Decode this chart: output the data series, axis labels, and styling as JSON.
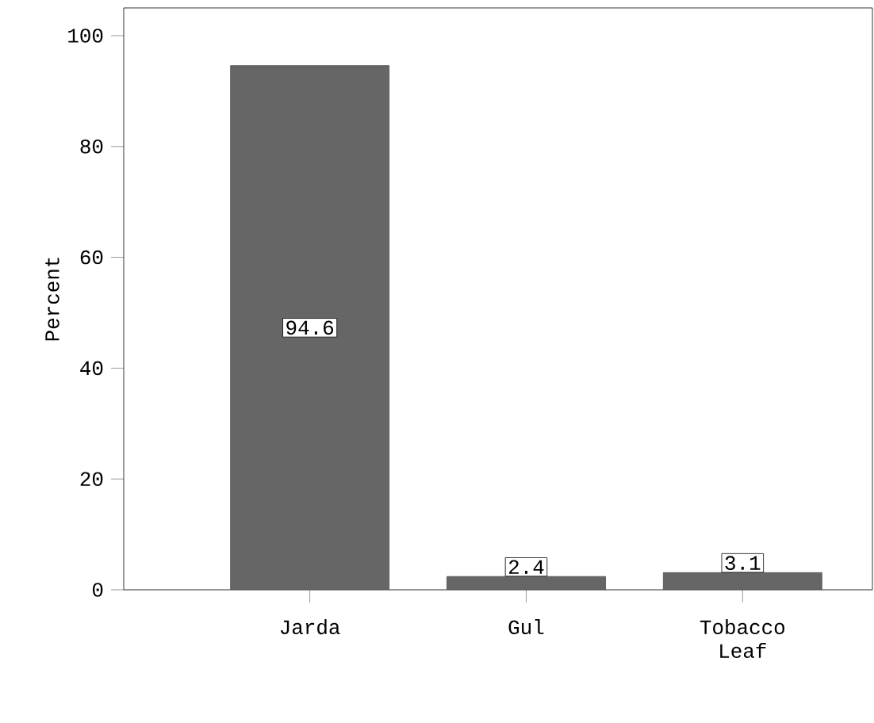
{
  "chart_data": {
    "type": "bar",
    "ylabel": "Percent",
    "categories": [
      "Jarda",
      "Gul",
      "Tobacco Leaf"
    ],
    "values": [
      94.6,
      2.4,
      3.1
    ],
    "color": "#666666",
    "data_labels": true,
    "ylim": [
      0,
      105
    ],
    "yticks": [
      0,
      20,
      40,
      60,
      80,
      100
    ]
  }
}
